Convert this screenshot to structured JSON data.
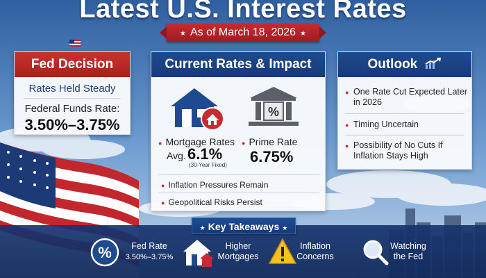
{
  "header": {
    "title": "Latest U.S. Interest Rates",
    "date": "As of March 18, 2026"
  },
  "fed_decision": {
    "title": "Fed Decision",
    "status": "Rates Held Steady",
    "rate_label": "Federal Funds Rate:",
    "rate_value": "3.50%–3.75%"
  },
  "current_rates": {
    "title": "Current Rates & Impact",
    "mortgage": {
      "label": "Mortgage Rates",
      "prefix": "Avg.",
      "value": "6.1%",
      "note": "(30-Year Fixed)",
      "icon": "house-icon"
    },
    "prime": {
      "label": "Prime Rate",
      "value": "6.75%",
      "icon": "bank-icon"
    },
    "bullets": [
      "Inflation Pressures Remain",
      "Geopolitical Risks Persist"
    ]
  },
  "outlook": {
    "title": "Outlook",
    "items": [
      "One Rate Cut Expected Later in 2026",
      "Timing Uncertain",
      "Possibility of No Cuts If Inflation Stays High"
    ]
  },
  "takeaways": {
    "title": "Key Takeaways",
    "items": [
      {
        "line1": "Fed Rate",
        "line2": "3.50%–3.75%",
        "icon": "percent-icon"
      },
      {
        "line1": "Higher",
        "line2": "Mortgages",
        "icon": "house-icon"
      },
      {
        "line1": "Inflation",
        "line2": "Concerns",
        "icon": "warning-icon"
      },
      {
        "line1": "Watching",
        "line2": "the Fed",
        "icon": "magnifier-icon"
      }
    ]
  },
  "colors": {
    "red": "#c72a30",
    "navy": "#1f4a8f",
    "warning_yellow": "#f5c31c"
  }
}
